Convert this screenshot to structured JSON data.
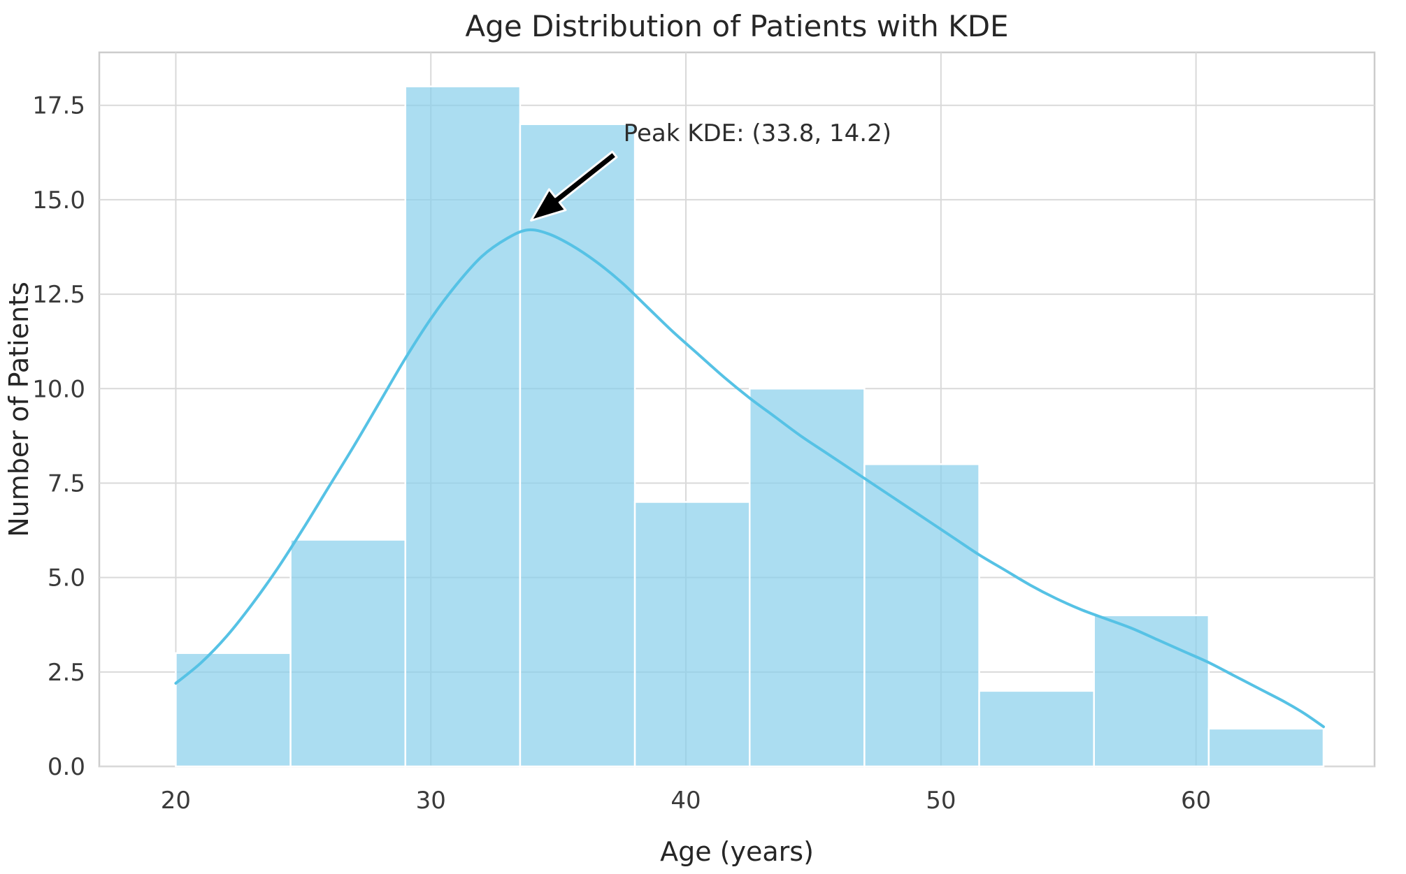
{
  "figure": {
    "background": "#ffffff"
  },
  "colors": {
    "bar_fill": "rgba(135,206,235,0.7)",
    "bar_edge": "#ffffff",
    "kde_line": "#56c2e5",
    "grid_line": "#d9d9d9",
    "spine": "#cccccc",
    "annotation_arrow": "#000000",
    "annotation_arrow_outline": "#ffffff",
    "text": "#262626"
  },
  "chart_data": {
    "type": "bar",
    "subtype": "histogram_with_kde",
    "title": "Age Distribution of Patients with KDE",
    "xlabel": "Age (years)",
    "ylabel": "Number of Patients",
    "grid": true,
    "legend": null,
    "xlim": [
      17,
      67
    ],
    "ylim": [
      0,
      18.9
    ],
    "x_ticks": [
      20,
      30,
      40,
      50,
      60
    ],
    "y_ticks": [
      "0.0",
      "2.5",
      "5.0",
      "7.5",
      "10.0",
      "12.5",
      "15.0",
      "17.5"
    ],
    "bin_edges": [
      20,
      24.5,
      29,
      33.5,
      38,
      42.5,
      47,
      51.5,
      56,
      60.5,
      65
    ],
    "counts": [
      3,
      6,
      18,
      17,
      7,
      10,
      8,
      2,
      4,
      1
    ],
    "kde": {
      "peak": {
        "x": 33.8,
        "y": 14.2
      },
      "points": [
        [
          20,
          2.2
        ],
        [
          21,
          2.75
        ],
        [
          22,
          3.45
        ],
        [
          23,
          4.3
        ],
        [
          24,
          5.25
        ],
        [
          25,
          6.3
        ],
        [
          26,
          7.4
        ],
        [
          27,
          8.5
        ],
        [
          28,
          9.65
        ],
        [
          29,
          10.8
        ],
        [
          30,
          11.85
        ],
        [
          31,
          12.75
        ],
        [
          32,
          13.5
        ],
        [
          33,
          13.98
        ],
        [
          33.8,
          14.2
        ],
        [
          34.6,
          14.1
        ],
        [
          35.5,
          13.8
        ],
        [
          36.5,
          13.35
        ],
        [
          37.5,
          12.8
        ],
        [
          38.5,
          12.15
        ],
        [
          39.5,
          11.5
        ],
        [
          40.5,
          10.9
        ],
        [
          41.5,
          10.3
        ],
        [
          42.5,
          9.75
        ],
        [
          43.5,
          9.25
        ],
        [
          44.5,
          8.75
        ],
        [
          45.5,
          8.3
        ],
        [
          46.5,
          7.85
        ],
        [
          47.5,
          7.4
        ],
        [
          48.5,
          6.95
        ],
        [
          49.5,
          6.5
        ],
        [
          50.5,
          6.05
        ],
        [
          51.5,
          5.6
        ],
        [
          52.5,
          5.2
        ],
        [
          53.5,
          4.8
        ],
        [
          54.5,
          4.45
        ],
        [
          55.5,
          4.15
        ],
        [
          56.5,
          3.9
        ],
        [
          57.5,
          3.65
        ],
        [
          58.5,
          3.35
        ],
        [
          59.5,
          3.05
        ],
        [
          60.5,
          2.75
        ],
        [
          61.5,
          2.4
        ],
        [
          62.5,
          2.05
        ],
        [
          63.5,
          1.7
        ],
        [
          64.25,
          1.4
        ],
        [
          65,
          1.05
        ]
      ]
    },
    "annotation": {
      "text": "Peak KDE: (33.8, 14.2)",
      "text_pos": [
        37.55,
        16.55
      ],
      "arrow_from": [
        37.2,
        16.2
      ],
      "arrow_to": [
        33.93,
        14.45
      ]
    }
  }
}
